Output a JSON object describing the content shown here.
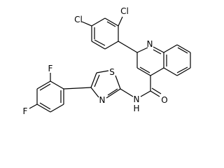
{
  "atoms": [
    {
      "label": "Cl"
    },
    {
      "label": "Cl"
    },
    {
      "label": "N"
    },
    {
      "label": "F"
    },
    {
      "label": "S"
    },
    {
      "label": "F"
    },
    {
      "label": "N"
    },
    {
      "label": "N"
    },
    {
      "label": "H"
    },
    {
      "label": "O"
    }
  ]
}
